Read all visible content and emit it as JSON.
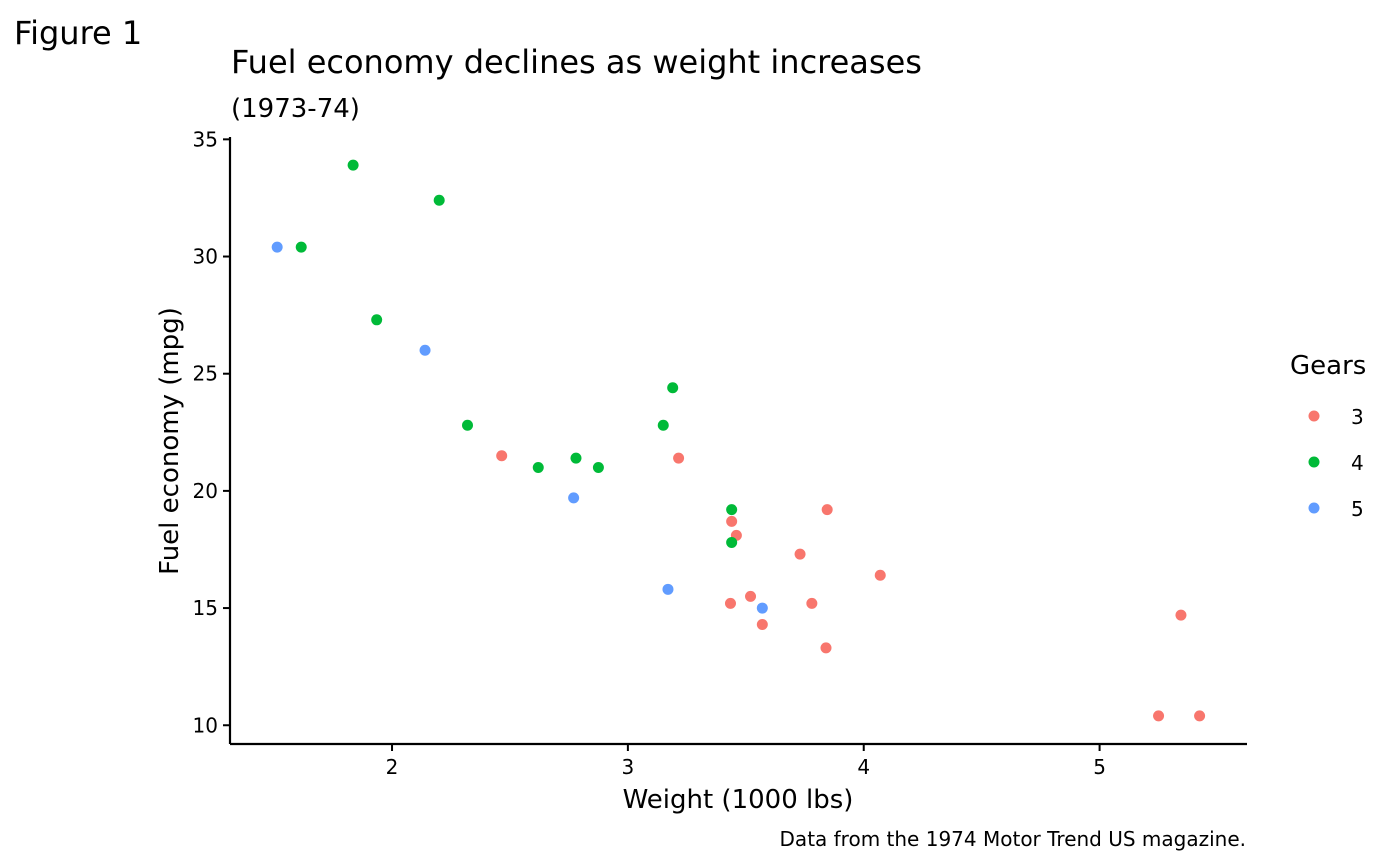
{
  "figure_label": "Figure 1",
  "chart_data": {
    "type": "scatter",
    "title": "Fuel economy declines as weight increases",
    "subtitle": "(1973-74)",
    "xlabel": "Weight (1000 lbs)",
    "ylabel": "Fuel economy (mpg)",
    "caption": "Data from the 1974 Motor Trend US magazine.",
    "xlim": [
      1.313,
      5.625
    ],
    "ylim": [
      9.2,
      35.1
    ],
    "x_ticks": [
      2,
      3,
      4,
      5
    ],
    "y_ticks": [
      10,
      15,
      20,
      25,
      30,
      35
    ],
    "grid": false,
    "legend": {
      "title": "Gears",
      "placement": "right",
      "entries": [
        {
          "label": "3",
          "color": "#F8766D"
        },
        {
          "label": "4",
          "color": "#00BA38"
        },
        {
          "label": "5",
          "color": "#619CFF"
        }
      ]
    },
    "series": [
      {
        "name": "3",
        "color": "#F8766D",
        "points": [
          {
            "x": 3.215,
            "y": 21.4
          },
          {
            "x": 3.44,
            "y": 18.7
          },
          {
            "x": 3.46,
            "y": 18.1
          },
          {
            "x": 3.57,
            "y": 14.3
          },
          {
            "x": 4.07,
            "y": 16.4
          },
          {
            "x": 3.73,
            "y": 17.3
          },
          {
            "x": 3.78,
            "y": 15.2
          },
          {
            "x": 5.25,
            "y": 10.4
          },
          {
            "x": 5.424,
            "y": 10.4
          },
          {
            "x": 5.345,
            "y": 14.7
          },
          {
            "x": 2.465,
            "y": 21.5
          },
          {
            "x": 3.52,
            "y": 15.5
          },
          {
            "x": 3.435,
            "y": 15.2
          },
          {
            "x": 3.84,
            "y": 13.3
          },
          {
            "x": 3.845,
            "y": 19.2
          }
        ]
      },
      {
        "name": "4",
        "color": "#00BA38",
        "points": [
          {
            "x": 2.62,
            "y": 21.0
          },
          {
            "x": 2.875,
            "y": 21.0
          },
          {
            "x": 2.32,
            "y": 22.8
          },
          {
            "x": 3.19,
            "y": 24.4
          },
          {
            "x": 3.15,
            "y": 22.8
          },
          {
            "x": 3.44,
            "y": 19.2
          },
          {
            "x": 3.44,
            "y": 17.8
          },
          {
            "x": 2.2,
            "y": 32.4
          },
          {
            "x": 1.615,
            "y": 30.4
          },
          {
            "x": 1.835,
            "y": 33.9
          },
          {
            "x": 1.935,
            "y": 27.3
          },
          {
            "x": 2.78,
            "y": 21.4
          }
        ]
      },
      {
        "name": "5",
        "color": "#619CFF",
        "points": [
          {
            "x": 2.14,
            "y": 26.0
          },
          {
            "x": 1.513,
            "y": 30.4
          },
          {
            "x": 3.17,
            "y": 15.8
          },
          {
            "x": 2.77,
            "y": 19.7
          },
          {
            "x": 3.57,
            "y": 15.0
          }
        ]
      }
    ]
  }
}
